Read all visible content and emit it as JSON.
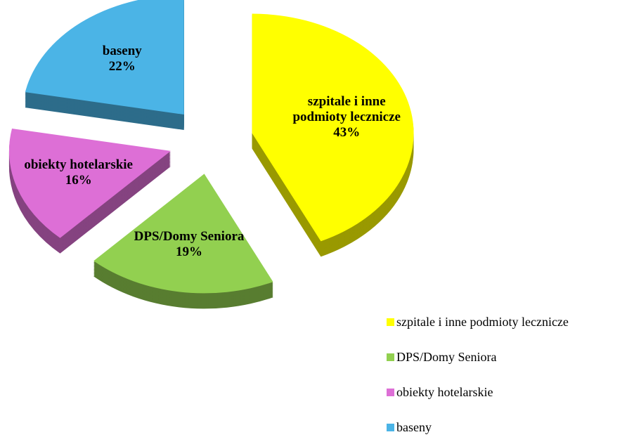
{
  "chart_data": {
    "type": "pie",
    "categories": [
      "szpitale i inne podmioty lecznicze",
      "DPS/Domy Seniora",
      "obiekty hotelarskie",
      "baseny"
    ],
    "values": [
      43,
      19,
      16,
      22
    ],
    "value_labels": [
      "43%",
      "19%",
      "16%",
      "22%"
    ],
    "colors": [
      "#ffff00",
      "#92d050",
      "#dd6fd6",
      "#4bb4e6"
    ],
    "legend": "bottom-right"
  }
}
